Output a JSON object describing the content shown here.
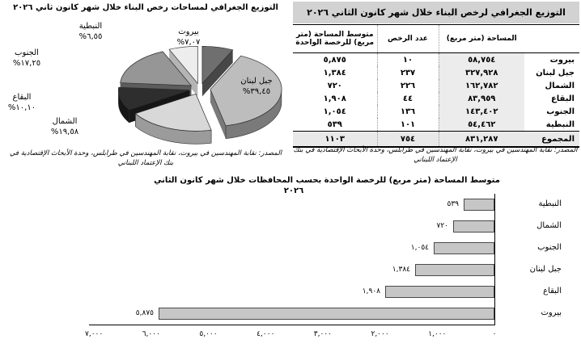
{
  "pie": {
    "title": "التوزيع الجغرافي لمساحات رخص البناء خلال شهر كانون ثاني ٢٠٢٦",
    "source": "المصدر: نقابة المهندسين في بيروت، نقابة المهندسين في طرابلس، وحدة الأبحاث الإقتصادية في بنك الإعتماد اللبناني",
    "slices": [
      {
        "name": "بيروت",
        "pct_label": "٧,٠٧%",
        "top": "#6f6f6f",
        "side": "#474747"
      },
      {
        "name": "جبل لبنان",
        "pct_label": "٣٩,٤٥%",
        "top": "#bdbdbd",
        "side": "#7a7a7a"
      },
      {
        "name": "الشمال",
        "pct_label": "١٩,٥٨%",
        "top": "#d8d8d8",
        "side": "#9b9b9b"
      },
      {
        "name": "البقاع",
        "pct_label": "١٠,١٠%",
        "top": "#2e2e2e",
        "side": "#161616"
      },
      {
        "name": "الجنوب",
        "pct_label": "١٧,٢٥%",
        "top": "#969696",
        "side": "#5c5c5c"
      },
      {
        "name": "النبطية",
        "pct_label": "٦,٥٥%",
        "top": "#ededed",
        "side": "#b5b5b5"
      }
    ]
  },
  "table": {
    "title": "التوزيع الجغرافي لرخص البناء خلال شهر كانون الثاني ٢٠٢٦",
    "columns": [
      "",
      "المساحة (متر مربع)",
      "عدد الرخص",
      "متوسط المساحة (متر مربع) للرخصة الواحدة"
    ],
    "rows": [
      {
        "region": "بيروت",
        "area": "٥٨,٧٥٤",
        "permits": "١٠",
        "avg": "٥,٨٧٥"
      },
      {
        "region": "جبل لبنان",
        "area": "٣٢٧,٩٢٨",
        "permits": "٢٣٧",
        "avg": "١,٣٨٤"
      },
      {
        "region": "الشمال",
        "area": "١٦٢,٧٨٢",
        "permits": "٢٢٦",
        "avg": "٧٢٠"
      },
      {
        "region": "البقاع",
        "area": "٨٣,٩٥٩",
        "permits": "٤٤",
        "avg": "١,٩٠٨"
      },
      {
        "region": "الجنوب",
        "area": "١٤٣,٤٠٢",
        "permits": "١٣٦",
        "avg": "١,٠٥٤"
      },
      {
        "region": "النبطية",
        "area": "٥٤,٤٦٢",
        "permits": "١٠١",
        "avg": "٥٣٩"
      }
    ],
    "total": {
      "region": "المجموع",
      "area": "٨٣١,٢٨٧",
      "permits": "٧٥٤",
      "avg": "١١٠٣"
    },
    "source": "المصدر: نقابة المهندسين في بيروت، نقابة المهندسين في طرابلس، وحدة الأبحاث الإقتصادية في بنك الإعتماد اللبناني"
  },
  "bar": {
    "title_line1": "متوسط المساحة (متر مربع) للرخصة الواحدة بحسب المحافظات خلال شهر كانون الثاني",
    "title_line2": "٢٠٢٦",
    "value_labels": [
      "٥٣٩",
      "٧٢٠",
      "١,٠٥٤",
      "١,٣٨٤",
      "١,٩٠٨",
      "٥,٨٧٥"
    ],
    "tick_labels_0_to_7000": [
      "٠",
      "١,٠٠٠",
      "٢,٠٠٠",
      "٣,٠٠٠",
      "٤,٠٠٠",
      "٥,٠٠٠",
      "٦,٠٠٠",
      "٧,٠٠٠"
    ],
    "bar_color": "#c6c6c6",
    "bar_border": "#4a4a4a"
  },
  "chart_data": [
    {
      "type": "pie",
      "title": "التوزيع الجغرافي لمساحات رخص البناء خلال شهر كانون ثاني ٢٠٢٦",
      "labels": [
        "بيروت",
        "جبل لبنان",
        "الشمال",
        "البقاع",
        "الجنوب",
        "النبطية"
      ],
      "values": [
        7.07,
        39.45,
        19.58,
        10.1,
        17.25,
        6.55
      ],
      "unit": "%",
      "style": "3d-exploded-grayscale",
      "source": "المصدر: نقابة المهندسين في بيروت، نقابة المهندسين في طرابلس، وحدة الأبحاث الإقتصادية في بنك الإعتماد اللبناني"
    },
    {
      "type": "bar",
      "orientation": "horizontal",
      "title": "متوسط المساحة (متر مربع) للرخصة الواحدة بحسب المحافظات خلال شهر كانون الثاني ٢٠٢٦",
      "categories": [
        "النبطية",
        "الشمال",
        "الجنوب",
        "جبل لبنان",
        "البقاع",
        "بيروت"
      ],
      "values": [
        539,
        720,
        1054,
        1384,
        1908,
        5875
      ],
      "xlim": [
        0,
        7000
      ],
      "x_axis_reversed": true,
      "grid": false,
      "legend": false
    },
    {
      "type": "table",
      "title": "التوزيع الجغرافي لرخص البناء خلال شهر كانون الثاني ٢٠٢٦",
      "columns": [
        "",
        "المساحة (متر مربع)",
        "عدد الرخص",
        "متوسط المساحة (متر مربع) للرخصة الواحدة"
      ],
      "rows": [
        [
          "بيروت",
          58754,
          10,
          5875
        ],
        [
          "جبل لبنان",
          327928,
          237,
          1384
        ],
        [
          "الشمال",
          162782,
          226,
          720
        ],
        [
          "البقاع",
          83959,
          44,
          1908
        ],
        [
          "الجنوب",
          143402,
          136,
          1054
        ],
        [
          "النبطية",
          54462,
          101,
          539
        ]
      ],
      "total": [
        "المجموع",
        831287,
        754,
        1103
      ]
    }
  ]
}
